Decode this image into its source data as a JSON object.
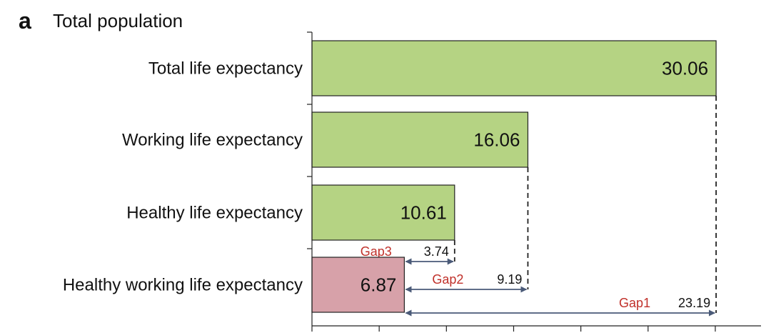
{
  "panel_letter": "a",
  "panel_title": "Total population",
  "chart_data": {
    "type": "bar",
    "orientation": "horizontal",
    "categories": [
      "Total life expectancy",
      "Working life expectancy",
      "Healthy life expectancy",
      "Healthy working life expectancy"
    ],
    "values": [
      30.06,
      16.06,
      10.61,
      6.87
    ],
    "value_labels": [
      "30.06",
      "16.06",
      "10.61",
      "6.87"
    ],
    "bar_colors": [
      "#b5d383",
      "#b5d383",
      "#b5d383",
      "#d7a1a9"
    ],
    "xlim": [
      0,
      33.4
    ],
    "x_tick_count": 8,
    "x_tick_step": 5,
    "grid": false,
    "gaps": [
      {
        "name": "Gap1",
        "value": 23.19,
        "label": "23.19",
        "from": 6.87,
        "to": 30.06
      },
      {
        "name": "Gap2",
        "value": 9.19,
        "label": "9.19",
        "from": 6.87,
        "to": 16.06
      },
      {
        "name": "Gap3",
        "value": 3.74,
        "label": "3.74",
        "from": 6.87,
        "to": 10.61
      }
    ],
    "colors": {
      "bar_border": "#222222",
      "gap_name": "#c0302a",
      "arrow": "#4a5a78",
      "dashed": "#222222"
    }
  }
}
